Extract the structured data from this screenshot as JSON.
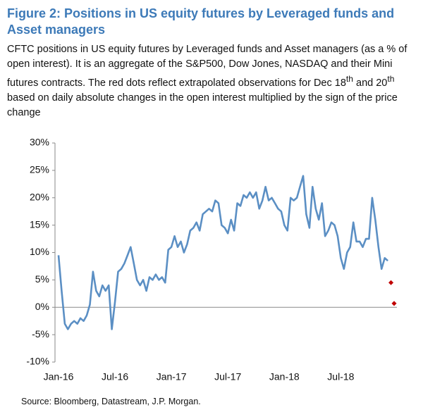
{
  "chart_data": {
    "type": "line",
    "title": "Figure 2: Positions in US equity futures by Leveraged funds and Asset managers",
    "subtitle": [
      "CFTC positions in US equity futures by Leveraged funds and Asset managers (as a % of open interest). It is an aggregate of the S&P500, Dow Jones, NASDAQ and their Mini futures contracts. The red dots reflect extrapolated observations for Dec 18",
      "th",
      " and 20",
      "th",
      " based on daily absolute changes in the open interest multiplied by the sign of the price change"
    ],
    "source": "Source: Bloomberg, Datastream, J.P. Morgan.",
    "categories": [
      "Jan-16",
      null,
      null,
      null,
      null,
      null,
      null,
      null,
      null,
      null,
      null,
      null,
      null,
      null,
      null,
      null,
      null,
      null,
      "Jul-16",
      null,
      null,
      null,
      null,
      null,
      null,
      null,
      null,
      null,
      null,
      null,
      null,
      null,
      null,
      null,
      null,
      null,
      "Jan-17",
      null,
      null,
      null,
      null,
      null,
      null,
      null,
      null,
      null,
      null,
      null,
      null,
      null,
      null,
      null,
      null,
      null,
      "Jul-17",
      null,
      null,
      null,
      null,
      null,
      null,
      null,
      null,
      null,
      null,
      null,
      null,
      null,
      null,
      null,
      null,
      null,
      "Jan-18",
      null,
      null,
      null,
      null,
      null,
      null,
      null,
      null,
      null,
      null,
      null,
      null,
      null,
      null,
      null,
      null,
      null,
      "Jul-18",
      null,
      null,
      null,
      null,
      null,
      null,
      null,
      null,
      null,
      null,
      null,
      null,
      null,
      null,
      null,
      null,
      null
    ],
    "series": [
      {
        "color": "#5b8fc4",
        "values": [
          9.5,
          3,
          -3,
          -4,
          -3,
          -2.5,
          -3,
          -2,
          -2.5,
          -1.5,
          0.5,
          6.5,
          3,
          2,
          4,
          3,
          4,
          -4,
          1,
          6.5,
          7,
          8,
          9.5,
          11,
          8,
          5,
          4,
          5,
          3,
          5.5,
          5,
          6,
          5,
          5.5,
          4.5,
          10.5,
          11,
          13,
          11,
          12,
          10,
          11.5,
          14,
          14.5,
          15.5,
          14,
          17,
          17.5,
          18,
          17.5,
          19.5,
          19,
          15,
          14.5,
          13.5,
          16,
          14,
          19,
          18.5,
          20.5,
          20,
          21,
          20,
          21,
          18,
          19.5,
          22,
          19.5,
          20,
          19,
          18,
          17.5,
          15,
          14,
          20,
          19.5,
          20,
          22,
          24,
          17,
          14.5,
          22,
          18,
          16,
          19,
          13,
          14,
          15.5,
          15,
          13,
          9,
          7,
          10,
          11,
          15.5,
          12,
          12,
          11,
          12.5,
          12.5,
          20,
          16,
          11,
          7,
          9,
          8.5,
          null,
          null
        ]
      },
      {
        "color": "#c00000",
        "values": [
          null,
          null,
          null,
          null,
          null,
          null,
          null,
          null,
          null,
          null,
          null,
          null,
          null,
          null,
          null,
          null,
          null,
          null,
          null,
          null,
          null,
          null,
          null,
          null,
          null,
          null,
          null,
          null,
          null,
          null,
          null,
          null,
          null,
          null,
          null,
          null,
          null,
          null,
          null,
          null,
          null,
          null,
          null,
          null,
          null,
          null,
          null,
          null,
          null,
          null,
          null,
          null,
          null,
          null,
          null,
          null,
          null,
          null,
          null,
          null,
          null,
          null,
          null,
          null,
          null,
          null,
          null,
          null,
          null,
          null,
          null,
          null,
          null,
          null,
          null,
          null,
          null,
          null,
          null,
          null,
          null,
          null,
          null,
          null,
          null,
          null,
          null,
          null,
          null,
          null,
          null,
          null,
          null,
          null,
          null,
          null,
          null,
          null,
          null,
          null,
          null,
          null,
          null,
          null,
          null,
          null,
          4.5,
          0.7
        ]
      }
    ],
    "ylim": [
      -10,
      30
    ],
    "yticks": [
      {
        "value": 30,
        "label": "30%"
      },
      {
        "value": 25,
        "label": "25%"
      },
      {
        "value": 20,
        "label": "20%"
      },
      {
        "value": 15,
        "label": "15%"
      },
      {
        "value": 10,
        "label": "10%"
      },
      {
        "value": 5,
        "label": "5%"
      },
      {
        "value": 0,
        "label": "0%"
      },
      {
        "value": -5,
        "label": "-5%"
      },
      {
        "value": -10,
        "label": "-10%"
      }
    ]
  }
}
